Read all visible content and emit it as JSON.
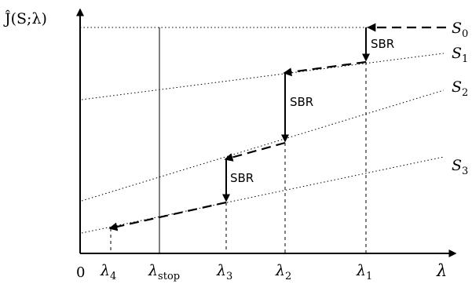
{
  "ylabel": "Ĵ(S;λ)",
  "xlabel": "λ",
  "origin_label": "0",
  "x_ticks": [
    {
      "base": "λ",
      "sub": "4"
    },
    {
      "base": "λ",
      "sub": "stop"
    },
    {
      "base": "λ",
      "sub": "3"
    },
    {
      "base": "λ",
      "sub": "2"
    },
    {
      "base": "λ",
      "sub": "1"
    }
  ],
  "curves": [
    {
      "base": "S",
      "sub": "0"
    },
    {
      "base": "S",
      "sub": "1"
    },
    {
      "base": "S",
      "sub": "2"
    },
    {
      "base": "S",
      "sub": "3"
    }
  ],
  "sbr_labels": [
    "SBR",
    "SBR",
    "SBR"
  ]
}
